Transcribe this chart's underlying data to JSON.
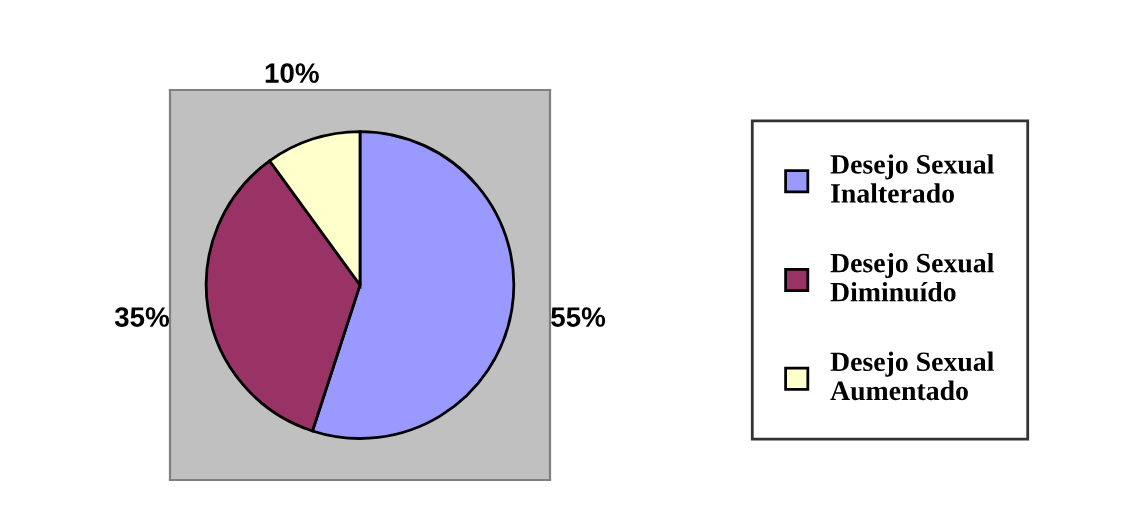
{
  "chart_data": {
    "type": "pie",
    "categories": [
      "Desejo Sexual Inalterado",
      "Desejo Sexual Diminuído",
      "Desejo Sexual Aumentado"
    ],
    "values": [
      55,
      35,
      10
    ],
    "colors": [
      "#9999ff",
      "#993366",
      "#ffffcc"
    ],
    "value_labels": [
      "55%",
      "35%",
      "10%"
    ],
    "legend": "right"
  }
}
